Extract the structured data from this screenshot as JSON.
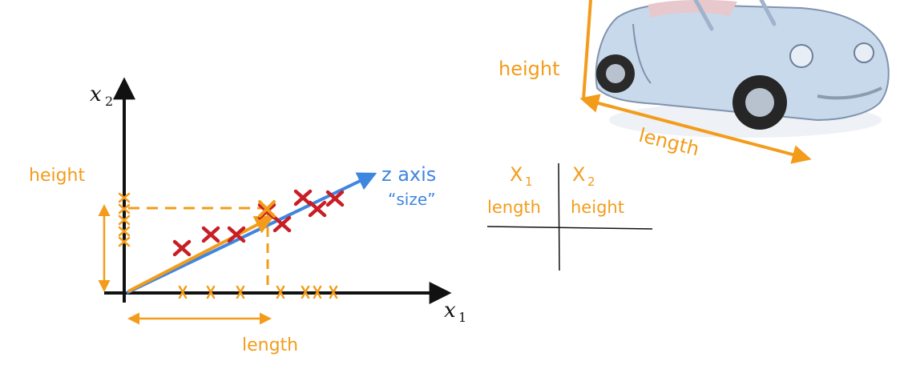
{
  "colors": {
    "orange": "#f39c1b",
    "red": "#c81e25",
    "blue": "#3f86e0",
    "black": "#111111",
    "car_body": "#c9d9ec",
    "car_shadow": "#9fb3cc"
  },
  "plot": {
    "axis_x_label": "x",
    "axis_x_sub": "1",
    "axis_y_label": "x",
    "axis_y_sub": "2",
    "height_label": "height",
    "length_label": "length",
    "z_axis_label": "z axis",
    "z_axis_sublabel": "“size”"
  },
  "table": {
    "col1_header": "X",
    "col1_sub": "1",
    "col2_header": "X",
    "col2_sub": "2",
    "col1_value": "length",
    "col2_value": "height"
  },
  "car_annotation": {
    "height_label": "height",
    "length_label": "length"
  },
  "icons": {
    "car": "convertible-car-icon"
  }
}
